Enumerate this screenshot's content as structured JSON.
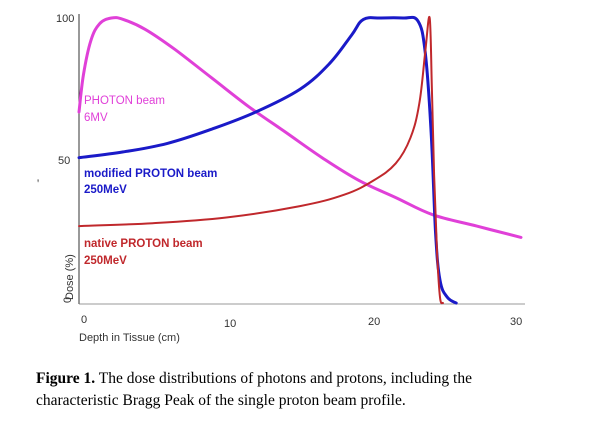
{
  "chart_data": {
    "type": "line",
    "xlabel": "Depth in Tissue (cm)",
    "ylabel": "Dose (%)",
    "xlim": [
      0,
      30
    ],
    "ylim": [
      0,
      100
    ],
    "x_ticks": [
      "0",
      "10",
      "20",
      "30"
    ],
    "y_ticks": [
      "100",
      "50",
      "0"
    ],
    "grid": false,
    "series": [
      {
        "name": "PHOTON beam",
        "name_line2": "6MV",
        "color": "#e040d8",
        "points": [
          [
            0,
            67
          ],
          [
            0.3,
            80
          ],
          [
            0.8,
            92
          ],
          [
            1.4,
            98
          ],
          [
            2.2,
            100
          ],
          [
            3,
            99.5
          ],
          [
            4.5,
            96
          ],
          [
            6.5,
            89
          ],
          [
            9,
            79
          ],
          [
            11.5,
            69
          ],
          [
            14,
            60
          ],
          [
            16.5,
            51
          ],
          [
            19,
            43
          ],
          [
            21.5,
            37
          ],
          [
            24,
            31
          ],
          [
            27,
            27
          ],
          [
            30,
            23
          ]
        ]
      },
      {
        "name": "modified PROTON beam",
        "name_line2": "250MeV",
        "color": "#1a1ac8",
        "points": [
          [
            0,
            51
          ],
          [
            3,
            53
          ],
          [
            6,
            56
          ],
          [
            9,
            61
          ],
          [
            12,
            67
          ],
          [
            15,
            75
          ],
          [
            17,
            84
          ],
          [
            18.5,
            94
          ],
          [
            19.3,
            99.5
          ],
          [
            20.5,
            100
          ],
          [
            22,
            100
          ],
          [
            23,
            99
          ],
          [
            23.5,
            88
          ],
          [
            23.9,
            60
          ],
          [
            24.2,
            25
          ],
          [
            24.5,
            8
          ],
          [
            25,
            2
          ],
          [
            25.6,
            0
          ]
        ]
      },
      {
        "name": "native PROTON beam",
        "name_line2": "250MeV",
        "color": "#c0282c",
        "points": [
          [
            0,
            27
          ],
          [
            5,
            28
          ],
          [
            10,
            30
          ],
          [
            15,
            34
          ],
          [
            18,
            38
          ],
          [
            20,
            43
          ],
          [
            21.5,
            49
          ],
          [
            22.5,
            58
          ],
          [
            23.1,
            70
          ],
          [
            23.5,
            88
          ],
          [
            23.8,
            100
          ],
          [
            23.95,
            75
          ],
          [
            24.1,
            45
          ],
          [
            24.3,
            18
          ],
          [
            24.5,
            2
          ],
          [
            24.7,
            0
          ]
        ]
      }
    ]
  },
  "caption": {
    "label": "Figure 1.",
    "text": " The dose distributions of photons and protons, including the characteristic Bragg Peak of the single proton beam profile."
  }
}
